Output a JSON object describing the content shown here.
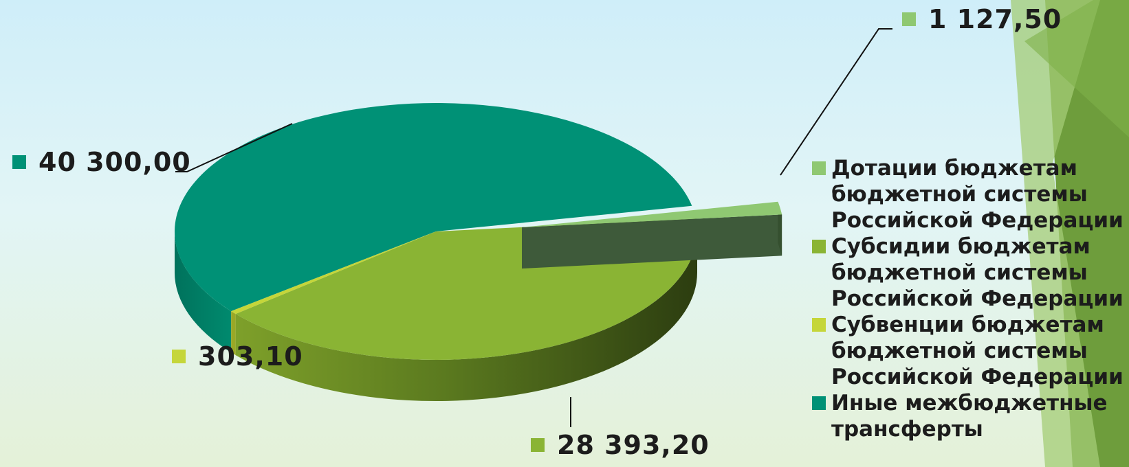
{
  "chart_data": {
    "type": "pie",
    "title": "",
    "legend_position": "right",
    "slices": [
      {
        "label": "Дотации бюджетам бюджетной системы Российской Федерации",
        "value": 1127.5,
        "value_text": "1 127,50",
        "color": "#8fc872",
        "exploded": true
      },
      {
        "label": "Субсидии бюджетам бюджетной системы Российской Федерации",
        "value": 28393.2,
        "value_text": "28 393,20",
        "color": "#8ab434",
        "exploded": false
      },
      {
        "label": "Субвенции бюджетам бюджетной системы Российской Федерации",
        "value": 303.1,
        "value_text": "303,10",
        "color": "#c5d63a",
        "exploded": false
      },
      {
        "label": "Иные межбюджетные трансферты",
        "value": 40300.0,
        "value_text": "40 300,00",
        "color": "#009176",
        "exploded": false
      }
    ]
  },
  "decor": {
    "corner_colors": [
      "#6e9d3c",
      "#a4cc76",
      "#7fb04a"
    ]
  }
}
